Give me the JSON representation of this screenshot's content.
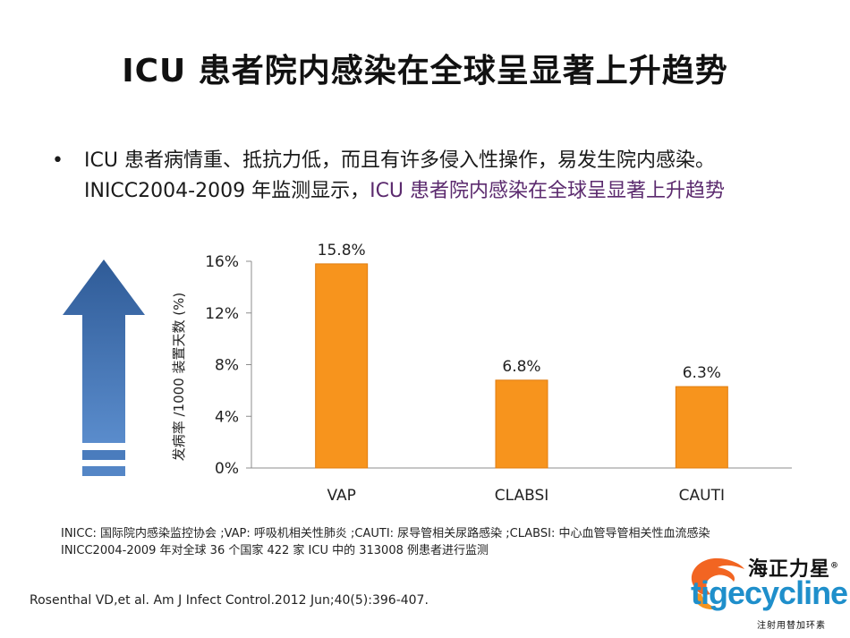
{
  "slide": {
    "title": "ICU 患者院内感染在全球呈显著上升趋势",
    "bullet": {
      "part1": "ICU 患者病情重、抵抗力低，而且有许多侵入性操作，易发生院内感染。 INICC2004-2009 年监测显示，",
      "highlight": "ICU 患者院内感染在全球呈显著上升趋势"
    },
    "notes": [
      "INICC: 国际院内感染监控协会 ;VAP: 呼吸机相关性肺炎 ;CAUTI: 尿导管相关尿路感染 ;CLABSI: 中心血管导管相关性血流感染",
      "INICC2004-2009 年对全球 36 个国家 422 家 ICU 中的 313008 例患者进行监测"
    ],
    "reference": "Rosenthal VD,et al. Am J Infect Control.2012 Jun;40(5):396-407.",
    "logo": {
      "brand_cn": "海正力星",
      "reg_mark": "®",
      "brand_en": "tigecycline",
      "tagline": "注射用替加环素"
    }
  },
  "colors": {
    "bar": "#f7941d",
    "arrow": "#3d6aa8",
    "highlight": "#5b2a6e",
    "logo_blue": "#1f8fcb",
    "logo_orange": "#f26522"
  },
  "chart_data": {
    "type": "bar",
    "categories": [
      "VAP",
      "CLABSI",
      "CAUTI"
    ],
    "values": [
      15.8,
      6.8,
      6.3
    ],
    "value_labels": [
      "15.8%",
      "6.8%",
      "6.3%"
    ],
    "ylabel": "发病率 /1000 装置天数 (%)",
    "xlabel": "",
    "ylim": [
      0,
      16
    ],
    "yticks": [
      0,
      4,
      8,
      12,
      16
    ],
    "ytick_labels": [
      "0%",
      "4%",
      "8%",
      "12%",
      "16%"
    ]
  }
}
